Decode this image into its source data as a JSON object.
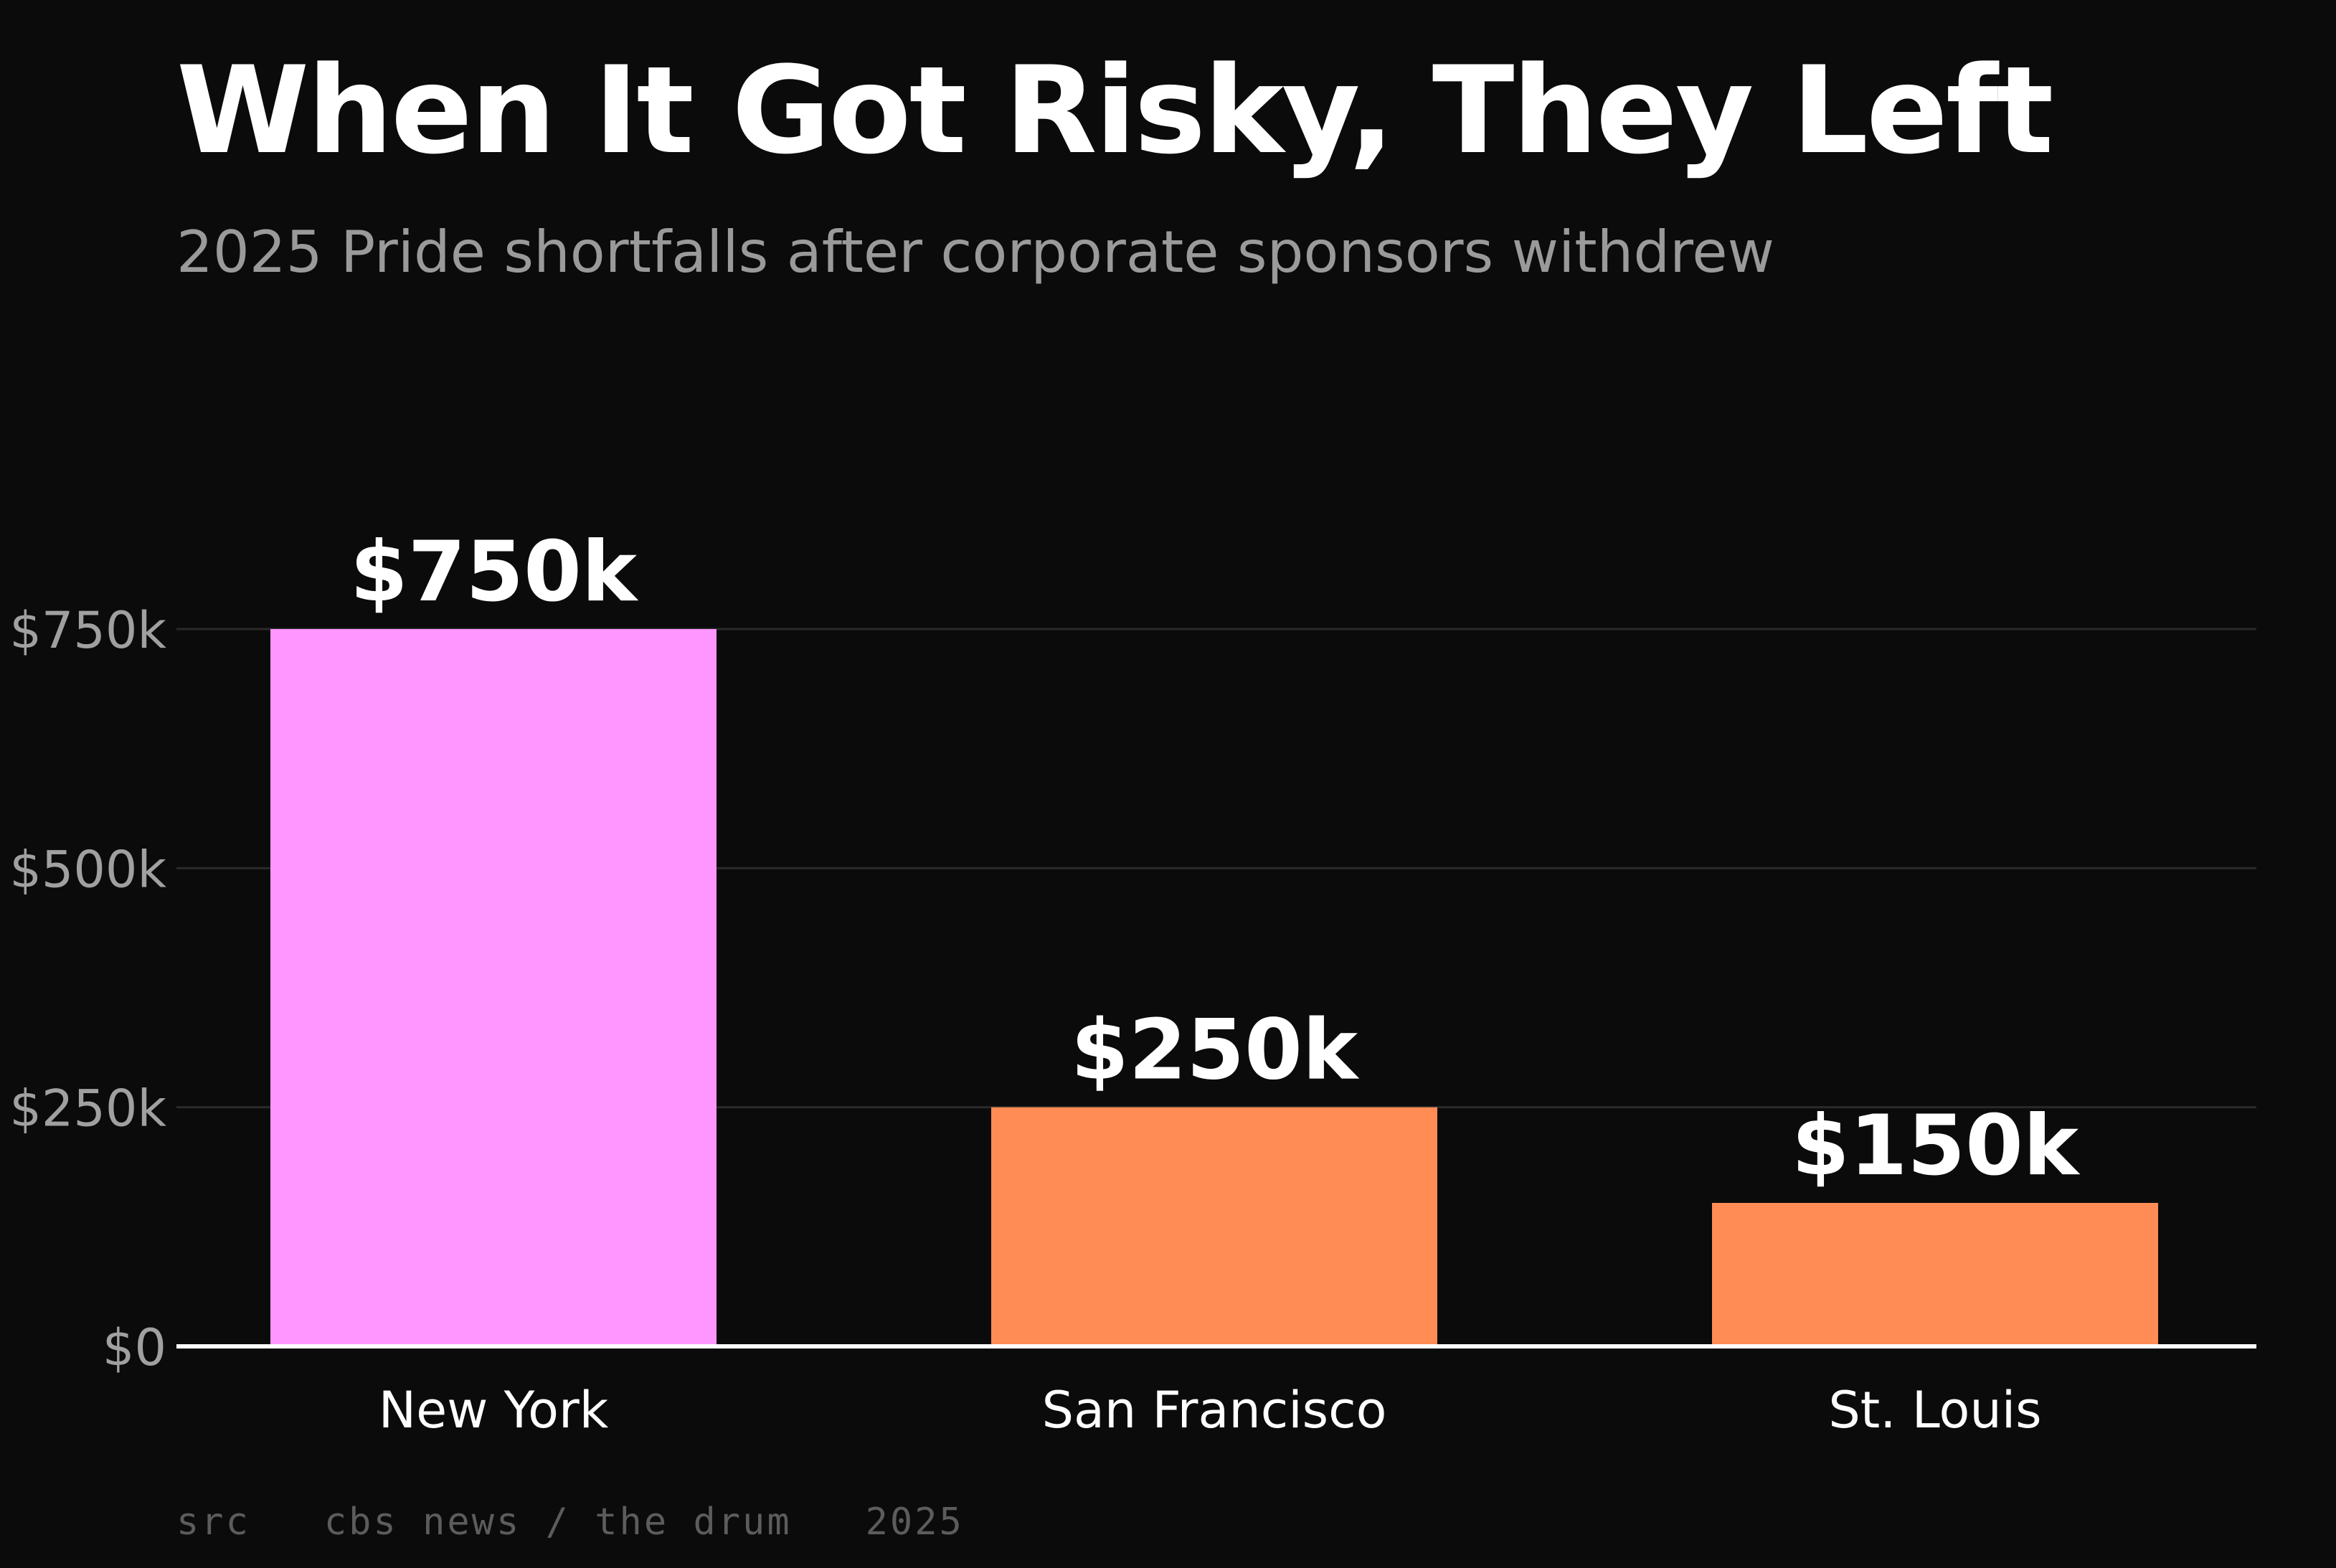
{
  "header": {
    "title": "When It Got Risky, They Left",
    "subtitle": "2025 Pride shortfalls after corporate sponsors withdrew"
  },
  "footer": {
    "source": "src   cbs news / the drum   2025"
  },
  "colors": {
    "background": "#0b0b0b",
    "highlight_bar": "#ff96ff",
    "bar": "#ff8c55",
    "axis_label": "#a0a0a0",
    "gridline": "#2a2a2a",
    "baseline": "#ffffff"
  },
  "chart_data": {
    "type": "bar",
    "title": "When It Got Risky, They Left",
    "subtitle": "2025 Pride shortfalls after corporate sponsors withdrew",
    "categories": [
      "New York",
      "San Francisco",
      "St. Louis"
    ],
    "values": [
      750000,
      250000,
      150000
    ],
    "value_labels": [
      "$750k",
      "$250k",
      "$150k"
    ],
    "bar_colors": [
      "#ff96ff",
      "#ff8c55",
      "#ff8c55"
    ],
    "yticks": [
      0,
      250000,
      500000,
      750000
    ],
    "ytick_labels": [
      "$0",
      "$250k",
      "$500k",
      "$750k"
    ],
    "ylim": [
      0,
      750000
    ],
    "xlabel": "",
    "ylabel": "",
    "grid": true,
    "legend": "none"
  }
}
